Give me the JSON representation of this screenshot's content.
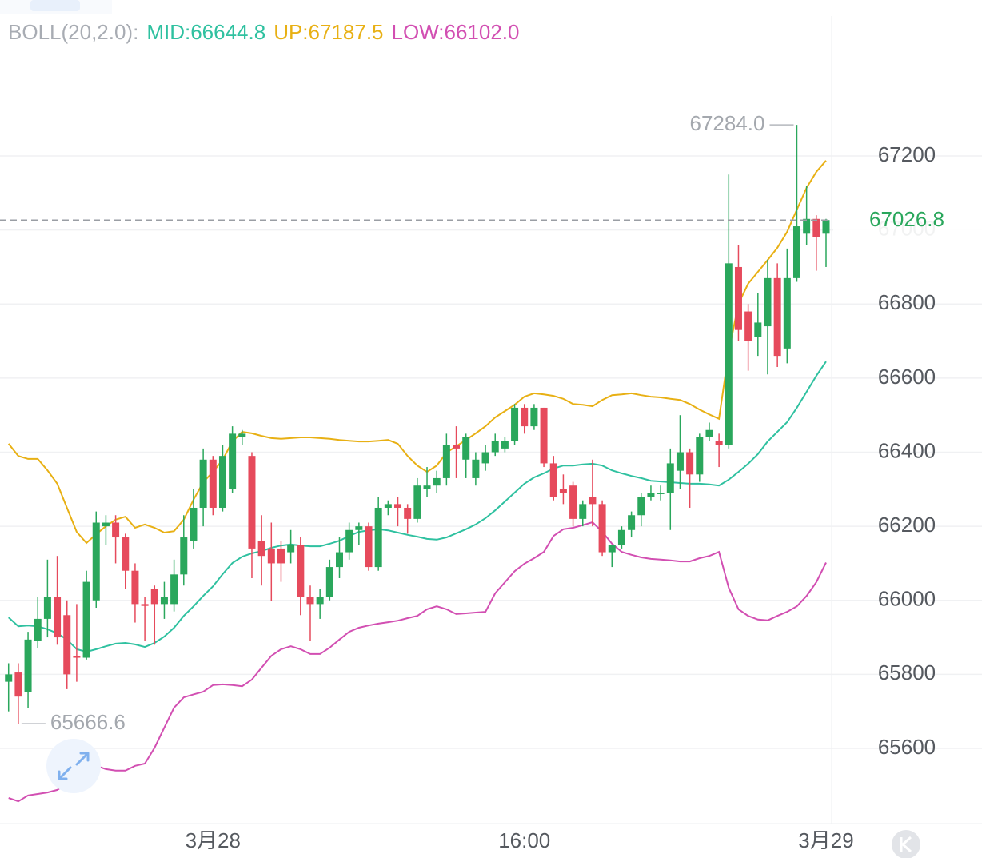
{
  "chart_data": {
    "type": "candlestick",
    "indicator": "BOLL(20,2.0):",
    "categories": [
      null,
      null,
      null,
      null,
      null,
      null,
      null,
      null,
      null,
      null,
      null,
      null,
      null,
      null,
      null,
      null,
      null,
      null,
      null,
      null,
      null,
      "3月28",
      null,
      null,
      null,
      null,
      null,
      null,
      null,
      null,
      null,
      null,
      null,
      null,
      null,
      null,
      null,
      null,
      null,
      null,
      null,
      null,
      null,
      null,
      null,
      null,
      null,
      null,
      null,
      null,
      null,
      null,
      null,
      "16:00",
      null,
      null,
      null,
      null,
      null,
      null,
      null,
      null,
      null,
      null,
      null,
      null,
      null,
      null,
      null,
      null,
      null,
      null,
      null,
      null,
      null,
      null,
      null,
      null,
      null,
      null,
      null,
      null,
      null,
      null,
      "3月29"
    ],
    "open": [
      65780,
      65805,
      65753,
      65890,
      65950,
      66010,
      65960,
      65850,
      65845,
      66000,
      66200,
      66210,
      66170,
      66080,
      65990,
      66030,
      65990,
      65990,
      66070,
      66160,
      66250,
      66380,
      66250,
      66300,
      66440,
      66390,
      66160,
      66140,
      66140,
      66130,
      66150,
      66010,
      65990,
      66010,
      66090,
      66130,
      66190,
      66200,
      66090,
      66250,
      66260,
      66250,
      66220,
      66300,
      66310,
      66330,
      66420,
      66380,
      66330,
      66370,
      66400,
      66410,
      66430,
      66520,
      66470,
      66520,
      66370,
      66300,
      66310,
      66220,
      66280,
      66260,
      66130,
      66150,
      66190,
      66230,
      66280,
      66290,
      66290,
      66350,
      66400,
      66340,
      66440,
      66430,
      66420,
      66900,
      66780,
      66710,
      66740,
      66870,
      66680,
      66870,
      66990,
      67030,
      66990
    ],
    "high": [
      65830,
      65830,
      65915,
      66010,
      66110,
      66120,
      66000,
      65990,
      66080,
      66240,
      66230,
      66230,
      66180,
      66100,
      66010,
      66040,
      66050,
      66110,
      66230,
      66300,
      66410,
      66390,
      66420,
      66470,
      66460,
      66400,
      66230,
      66210,
      66160,
      66190,
      66170,
      66040,
      66030,
      66110,
      66170,
      66210,
      66210,
      66210,
      66280,
      66270,
      66280,
      66260,
      66330,
      66360,
      66350,
      66450,
      66470,
      66450,
      66400,
      66420,
      66450,
      66440,
      66530,
      66530,
      66530,
      66520,
      66390,
      66340,
      66320,
      66270,
      66380,
      66270,
      66150,
      66200,
      66240,
      66290,
      66310,
      66310,
      66410,
      66500,
      66410,
      66450,
      66480,
      66450,
      67150,
      66960,
      66800,
      66830,
      66920,
      66910,
      66950,
      67284.0,
      67120,
      67040,
      67030
    ],
    "low": [
      65700,
      65666.6,
      65710,
      65870,
      65900,
      65880,
      65760,
      65780,
      65840,
      65980,
      66150,
      66100,
      66030,
      65940,
      65890,
      65880,
      65950,
      65970,
      66040,
      66140,
      66200,
      66230,
      66240,
      66290,
      66420,
      66060,
      66040,
      65998,
      66050,
      66100,
      65960,
      65890,
      65950,
      66000,
      66060,
      66110,
      66150,
      66080,
      66080,
      66230,
      66200,
      66180,
      66210,
      66280,
      66290,
      66310,
      66330,
      66330,
      66310,
      66350,
      66390,
      66400,
      66420,
      66450,
      66460,
      66360,
      66270,
      66260,
      66200,
      66200,
      66200,
      66120,
      66090,
      66140,
      66170,
      66200,
      66270,
      66270,
      66190,
      66300,
      66250,
      66320,
      66430,
      66360,
      66410,
      66700,
      66620,
      66660,
      66610,
      66630,
      66640,
      66860,
      66960,
      66890,
      66900
    ],
    "close": [
      65800,
      65740,
      65894,
      65950,
      66010,
      65900,
      65800,
      65845,
      66050,
      66210,
      66210,
      66170,
      66080,
      65990,
      65985,
      65990,
      66010,
      66070,
      66170,
      66250,
      66380,
      66250,
      66390,
      66450,
      66450,
      66140,
      66120,
      66100,
      66100,
      66150,
      66010,
      65990,
      66010,
      66090,
      66130,
      66190,
      66200,
      66090,
      66250,
      66260,
      66250,
      66220,
      66310,
      66310,
      66330,
      66420,
      66410,
      66440,
      66380,
      66400,
      66430,
      66430,
      66520,
      66470,
      66520,
      66370,
      66280,
      66290,
      66220,
      66260,
      66260,
      66130,
      66150,
      66190,
      66230,
      66280,
      66290,
      66290,
      66370,
      66400,
      66340,
      66440,
      66460,
      66420,
      66910,
      66730,
      66700,
      66750,
      66870,
      66660,
      66870,
      67010,
      67030,
      66980,
      67026.8
    ],
    "up_color": "#2aa75c",
    "down_color": "#e64a5c",
    "series": [
      {
        "name": "MID:66644.8",
        "color": "#2fc1a0",
        "values": [
          65954,
          65930,
          65932,
          65930,
          65922,
          65911,
          65894,
          65868,
          65861,
          65868,
          65876,
          65883,
          65885,
          65881,
          65874,
          65885,
          65902,
          65926,
          65958,
          65984,
          66012,
          66038,
          66071,
          66101,
          66118,
          66127,
          66133,
          66142,
          66148,
          66151,
          66148,
          66146,
          66146,
          66153,
          66161,
          66174,
          66185,
          66189,
          66192,
          66189,
          66183,
          66177,
          66172,
          66166,
          66164,
          66170,
          66181,
          66192,
          66205,
          66222,
          66243,
          66267,
          66291,
          66315,
          66332,
          66343,
          66356,
          66364,
          66364,
          66367,
          66369,
          66364,
          66351,
          66343,
          66336,
          66330,
          66323,
          66321,
          66319,
          66317,
          66315,
          66315,
          66313,
          66310,
          66326,
          66347,
          66369,
          66395,
          66429,
          66455,
          66481,
          66520,
          66563,
          66606,
          66644.8
        ]
      },
      {
        "name": "UP:67187.5",
        "color": "#e8b014",
        "values": [
          66423,
          66390,
          66382,
          66382,
          66351,
          66315,
          66250,
          66185,
          66155,
          66179,
          66200,
          66218,
          66226,
          66196,
          66205,
          66196,
          66183,
          66187,
          66218,
          66272,
          66319,
          66347,
          66380,
          66429,
          66455,
          66451,
          66444,
          66438,
          66436,
          66438,
          66440,
          66440,
          66438,
          66436,
          66433,
          66431,
          66429,
          66429,
          66431,
          66433,
          66423,
          66390,
          66364,
          66347,
          66364,
          66399,
          66416,
          66433,
          66451,
          66470,
          66494,
          66511,
          66528,
          66550,
          66559,
          66556,
          66552,
          66544,
          66530,
          66528,
          66524,
          66541,
          66554,
          66556,
          66559,
          66554,
          66550,
          66548,
          66544,
          66541,
          66530,
          66515,
          66502,
          66490,
          66671,
          66801,
          66855,
          66887,
          66919,
          66952,
          66995,
          67055,
          67114,
          67157,
          67187.5
        ]
      },
      {
        "name": "LOW:66102.0",
        "color": "#d24fb2",
        "values": [
          65466,
          65457,
          65473,
          65477,
          65481,
          65488,
          65505,
          65548,
          65559,
          65553,
          65544,
          65540,
          65540,
          65553,
          65559,
          65602,
          65656,
          65710,
          65738,
          65746,
          65753,
          65771,
          65773,
          65771,
          65768,
          65786,
          65818,
          65850,
          65868,
          65876,
          65868,
          65855,
          65855,
          65872,
          65894,
          65915,
          65926,
          65932,
          65937,
          65941,
          65945,
          65952,
          65958,
          65976,
          65984,
          65976,
          65963,
          65965,
          65967,
          65969,
          66019,
          66049,
          66079,
          66099,
          66114,
          66131,
          66174,
          66192,
          66196,
          66203,
          66211,
          66185,
          66153,
          66131,
          66123,
          66116,
          66112,
          66110,
          66108,
          66105,
          66105,
          66114,
          66120,
          66131,
          66034,
          65976,
          65958,
          65948,
          65946,
          65958,
          65969,
          65984,
          66012,
          66049,
          66102.0
        ]
      }
    ],
    "max_label": "67284.0",
    "min_label": "65666.6",
    "ylim": [
      65397,
      67578
    ],
    "yticks": [
      65600,
      65800,
      66000,
      66200,
      66400,
      66600,
      66800,
      67000,
      67200
    ],
    "grid": true
  }
}
